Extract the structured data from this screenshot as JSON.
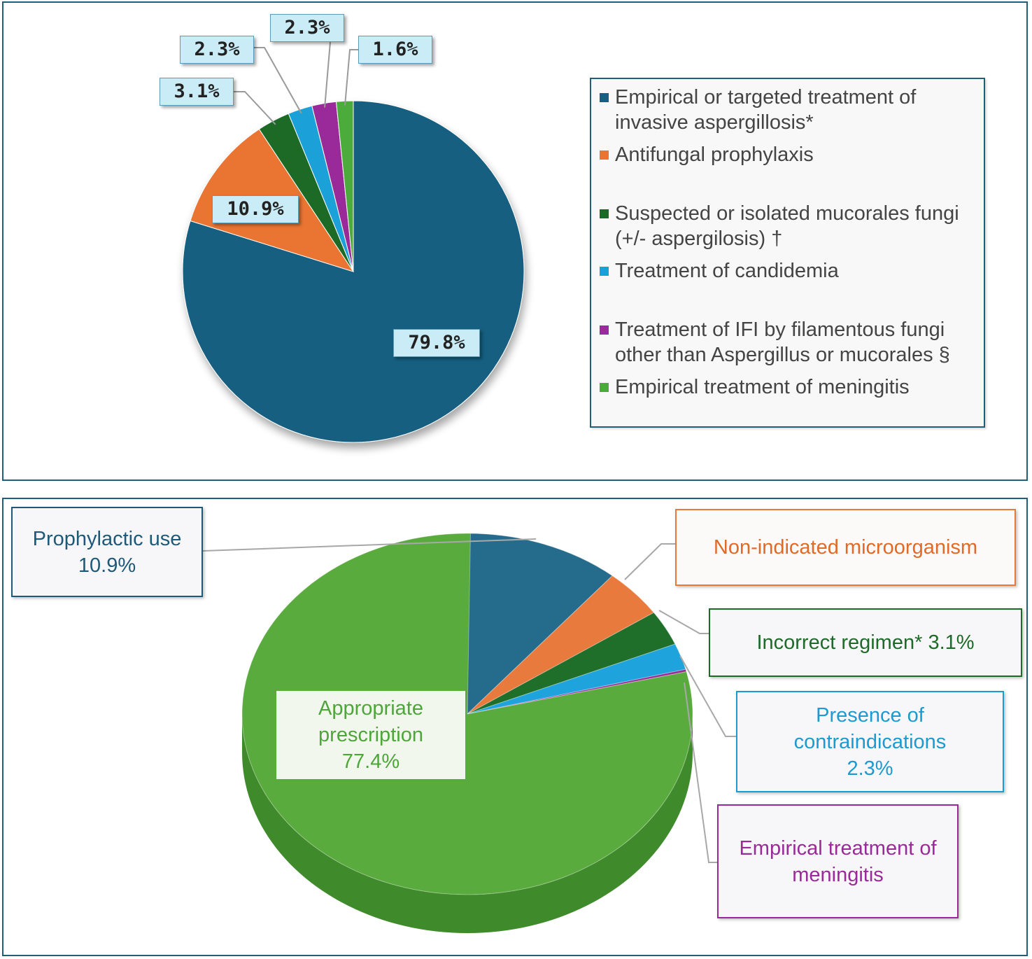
{
  "chart_data": [
    {
      "type": "pie",
      "slices": [
        {
          "label": "Empirical or targeted treatment of invasive aspergillosis*",
          "value": 79.8,
          "value_label": "79.8%",
          "color": "#175e80"
        },
        {
          "label": "Antifungal prophylaxis",
          "value": 10.9,
          "value_label": "10.9%",
          "color": "#ea7433"
        },
        {
          "label": "Suspected or isolated mucorales fungi (+/- aspergilosis) †",
          "value": 3.1,
          "value_label": "3.1%",
          "color": "#1a6b26"
        },
        {
          "label": "Treatment of candidemia",
          "value": 2.3,
          "value_label": "2.3%",
          "color": "#1aa0d8"
        },
        {
          "label": "Treatment of IFI by filamentous fungi other than Aspergillus or mucorales §",
          "value": 2.3,
          "value_label": "2.3%",
          "color": "#9a2c9a"
        },
        {
          "label": "Empirical treatment of meningitis",
          "value": 1.6,
          "value_label": "1.6%",
          "color": "#4bab3a"
        }
      ],
      "legend_position": "right"
    },
    {
      "type": "pie",
      "style": "3d",
      "slices": [
        {
          "name": "Prophylactic use",
          "value": 10.9,
          "text": [
            "Prophylactic use",
            "10.9%"
          ],
          "color": "#256b8c",
          "text_color": "#1e5a78"
        },
        {
          "name": "Non-indicated microorganism",
          "value": 4.3,
          "text": [
            "Non-indicated microorganism"
          ],
          "color": "#e87a3e",
          "text_color": "#e06a28"
        },
        {
          "name": "Incorrect regimen*",
          "value": 3.1,
          "text": [
            "Incorrect regimen* 3.1%"
          ],
          "color": "#1f6e2a",
          "text_color": "#1e6a28"
        },
        {
          "name": "Presence of contraindications",
          "value": 2.3,
          "text": [
            "Presence of",
            "contraindications",
            "2.3%"
          ],
          "color": "#1ea3dc",
          "text_color": "#1c9ad2"
        },
        {
          "name": "Empirical treatment of meningitis",
          "value": 0.0,
          "text": [
            "Empirical treatment of",
            "meningitis"
          ],
          "color": "#982d98",
          "text_color": "#9a2a9a"
        },
        {
          "name": "Appropriate prescription",
          "value": 77.4,
          "text": [
            "Appropriate",
            "prescription",
            "77.4%"
          ],
          "color": "#5aab3e",
          "text_color": "#4ea63a"
        }
      ]
    }
  ]
}
